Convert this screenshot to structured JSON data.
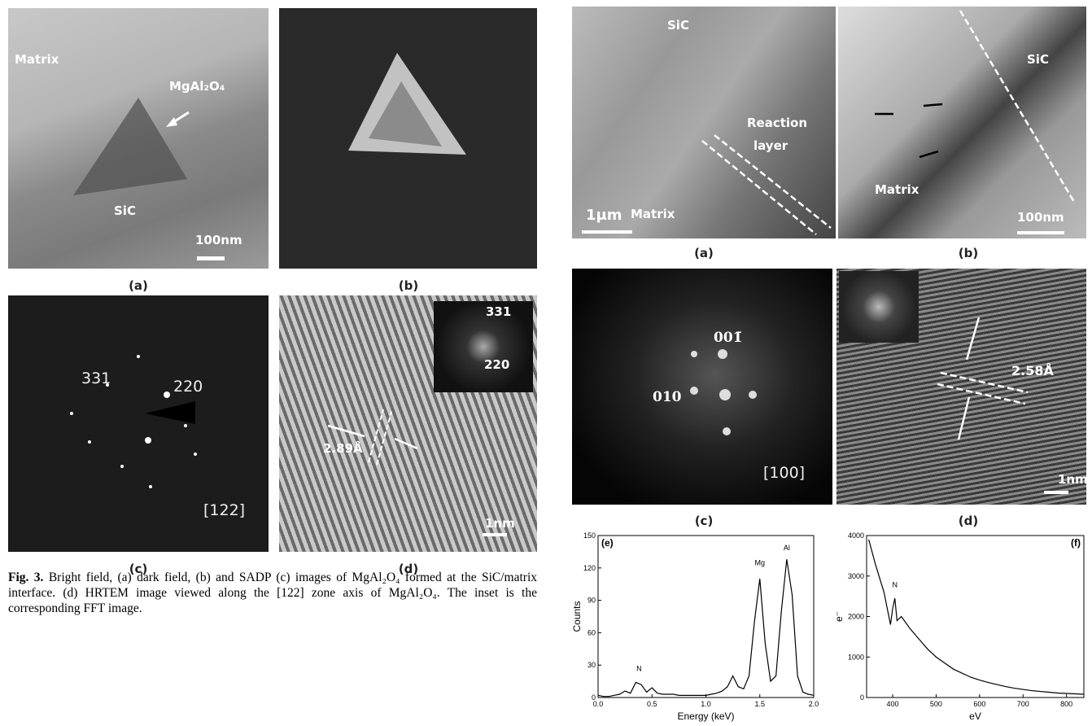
{
  "left_figure": {
    "panels": [
      {
        "label": "(a)",
        "texts": [
          "Matrix",
          "MgAl₂O₄",
          "SiC",
          "100nm"
        ]
      },
      {
        "label": "(b)"
      },
      {
        "label": "(c)",
        "texts": [
          "331",
          "220",
          "[122]"
        ]
      },
      {
        "label": "(d)",
        "texts": [
          "331",
          "220",
          "2.89Å",
          "1nm"
        ]
      }
    ],
    "caption": {
      "lead": "Fig. 3.",
      "text": "Bright field, (a) dark field, (b) and SADP (c) images of MgAl₂O₄ formed at the SiC/matrix interface. (d) HRTEM image viewed along the [122] zone axis of MgAl₂O₄. The inset is the corresponding FFT image."
    }
  },
  "right_figure": {
    "panels": [
      {
        "label": "(a)",
        "texts": [
          "SiC",
          "Reaction",
          "layer",
          "Matrix",
          "1μm"
        ]
      },
      {
        "label": "(b)",
        "texts": [
          "SiC",
          "Matrix",
          "100nm"
        ]
      },
      {
        "label": "(c)",
        "texts": [
          "001̄",
          "010",
          "[100]"
        ]
      },
      {
        "label": "(d)",
        "texts": [
          "2.58Å",
          "1nm"
        ]
      }
    ],
    "spectra": [
      {
        "type": "line",
        "label": "(e)",
        "x_label": "Energy (keV)",
        "y_label": "Counts",
        "annotations": [
          "N",
          "Mg",
          "Al"
        ],
        "x": [
          0,
          0.05,
          0.1,
          0.15,
          0.2,
          0.25,
          0.3,
          0.35,
          0.4,
          0.45,
          0.5,
          0.55,
          0.6,
          0.65,
          0.7,
          0.75,
          0.8,
          0.85,
          0.9,
          0.95,
          1,
          1.05,
          1.1,
          1.15,
          1.2,
          1.25,
          1.3,
          1.35,
          1.4,
          1.45,
          1.5,
          1.55,
          1.6,
          1.65,
          1.7,
          1.75,
          1.8,
          1.85,
          1.9,
          1.95,
          2
        ],
        "values": [
          2,
          1,
          1,
          2,
          3,
          6,
          4,
          14,
          12,
          5,
          9,
          4,
          3,
          3,
          3,
          2,
          2,
          2,
          2,
          2,
          2,
          3,
          4,
          6,
          10,
          20,
          10,
          8,
          20,
          70,
          110,
          50,
          15,
          20,
          80,
          128,
          95,
          20,
          5,
          3,
          2
        ],
        "xlim": [
          0,
          2
        ],
        "xticks": [
          {
            "value": 0,
            "label": "0.0"
          },
          0.5,
          {
            "value": 1,
            "label": "1.0"
          },
          1.5,
          {
            "value": 2,
            "label": "2.0"
          }
        ],
        "ylim": [
          0,
          150
        ],
        "yticks": [
          0,
          30,
          60,
          90,
          120,
          150
        ],
        "color": "#000000"
      },
      {
        "type": "line",
        "label": "(f)",
        "x_label": "eV",
        "y_label": "e⁻",
        "annotations": [
          "N"
        ],
        "x": [
          345,
          360,
          380,
          395,
          400,
          405,
          410,
          420,
          440,
          460,
          480,
          500,
          520,
          540,
          560,
          580,
          600,
          620,
          640,
          660,
          680,
          700,
          720,
          740,
          760,
          780,
          800,
          820,
          840
        ],
        "values": [
          3900,
          3300,
          2600,
          1800,
          2200,
          2450,
          1900,
          2000,
          1700,
          1450,
          1200,
          1000,
          850,
          700,
          600,
          500,
          430,
          370,
          320,
          270,
          230,
          200,
          170,
          150,
          130,
          110,
          100,
          90,
          80
        ],
        "xlim": [
          340,
          840
        ],
        "xticks": [
          400,
          500,
          600,
          700,
          800
        ],
        "ylim": [
          0,
          4000
        ],
        "yticks": [
          0,
          1000,
          2000,
          3000,
          4000
        ],
        "color": "#000000"
      }
    ]
  }
}
